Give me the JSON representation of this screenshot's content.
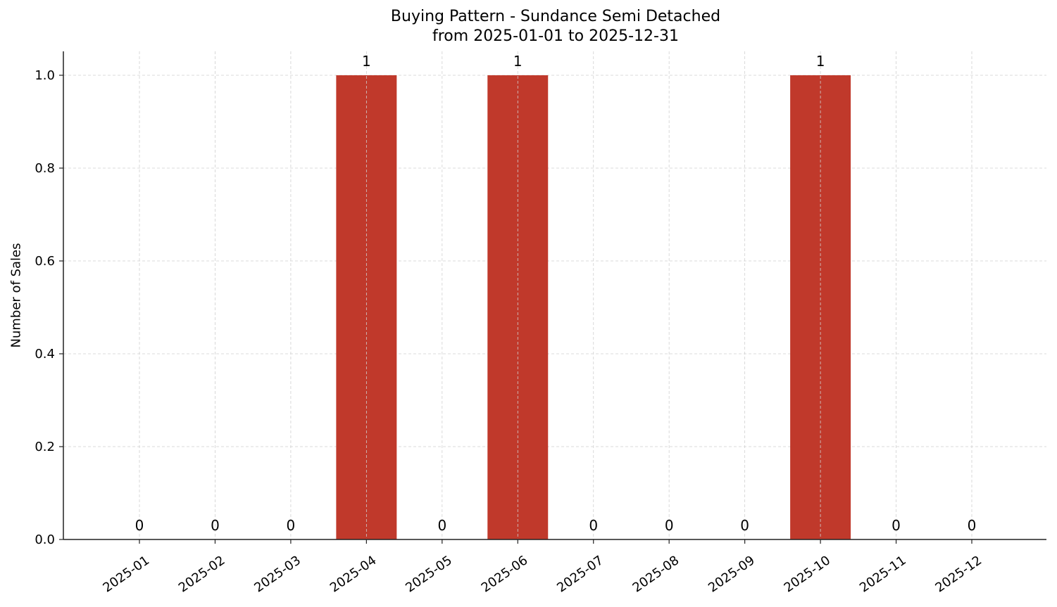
{
  "chart_data": {
    "type": "bar",
    "title": "Buying Pattern - Sundance Semi Detached",
    "subtitle": "from 2025-01-01 to 2025-12-31",
    "xlabel": "",
    "ylabel": "Number of Sales",
    "categories": [
      "2025-01",
      "2025-02",
      "2025-03",
      "2025-04",
      "2025-05",
      "2025-06",
      "2025-07",
      "2025-08",
      "2025-09",
      "2025-10",
      "2025-11",
      "2025-12"
    ],
    "values": [
      0,
      0,
      0,
      1,
      0,
      1,
      0,
      0,
      0,
      1,
      0,
      0
    ],
    "data_labels": [
      "0",
      "0",
      "0",
      "1",
      "0",
      "1",
      "0",
      "0",
      "0",
      "1",
      "0",
      "0"
    ],
    "ylim": [
      0,
      1.05
    ],
    "yticks": [
      0.0,
      0.2,
      0.4,
      0.6,
      0.8,
      1.0
    ],
    "ytick_labels": [
      "0.0",
      "0.2",
      "0.4",
      "0.6",
      "0.8",
      "1.0"
    ],
    "grid": true,
    "grid_style": "dashed",
    "legend": null,
    "bar_color": "#c0392b",
    "xtick_rotation": 35
  }
}
